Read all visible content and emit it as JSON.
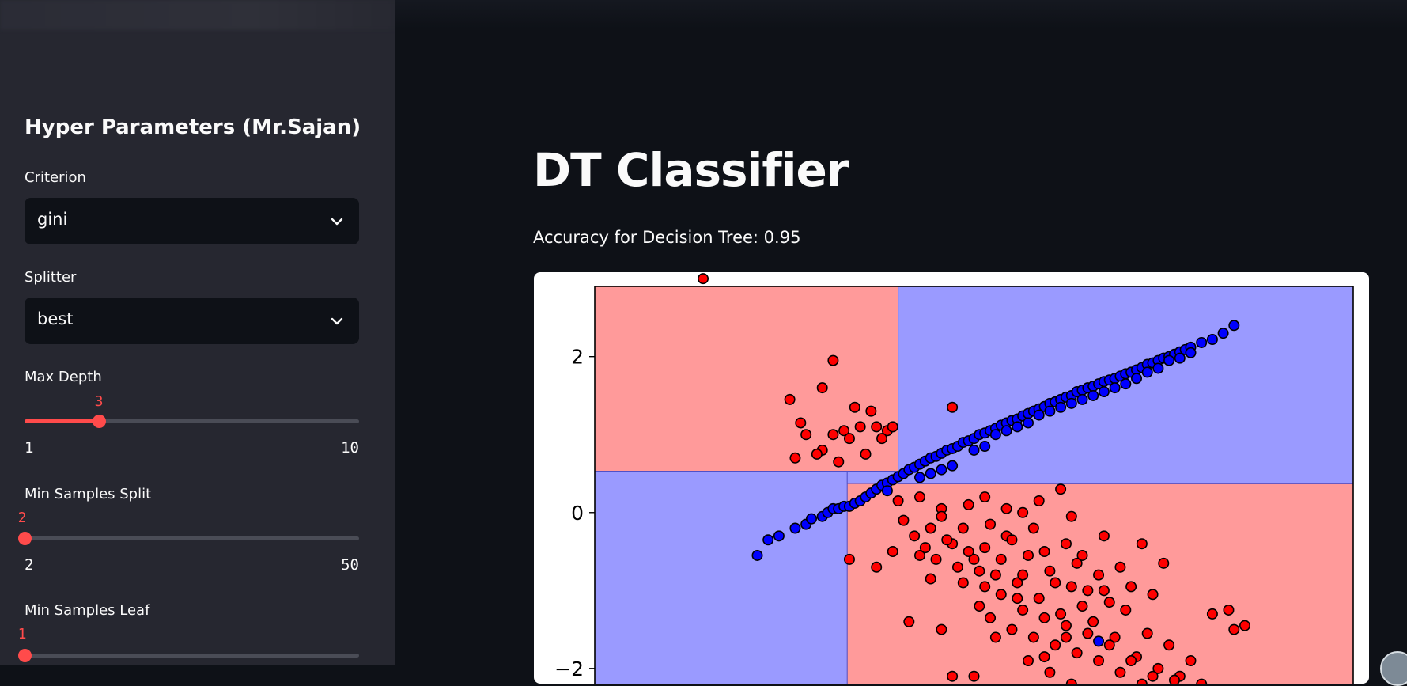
{
  "sidebar": {
    "title": "Hyper Parameters (Mr.Sajan)",
    "criterion": {
      "label": "Criterion",
      "value": "gini"
    },
    "splitter": {
      "label": "Splitter",
      "value": "best"
    },
    "max_depth": {
      "label": "Max Depth",
      "value": 3,
      "value_text": "3",
      "min": 1,
      "max": 10,
      "min_text": "1",
      "max_text": "10"
    },
    "min_samples_split": {
      "label": "Min Samples Split",
      "value": 2,
      "value_text": "2",
      "min": 2,
      "max": 50,
      "min_text": "2",
      "max_text": "50"
    },
    "min_samples_leaf": {
      "label": "Min Samples Leaf",
      "value": 1,
      "value_text": "1"
    }
  },
  "main": {
    "title": "DT Classifier",
    "accuracy_text": "Accuracy for Decision Tree: 0.95"
  },
  "colors": {
    "accent": "#ff4b4b",
    "region_red": "#ff9a9a",
    "region_blue": "#9a9aff",
    "point_red": "#ff0000",
    "point_blue": "#0000ff"
  },
  "chart_data": {
    "type": "scatter",
    "title": "",
    "xlabel": "",
    "ylabel": "",
    "xlim": [
      -3.4,
      3.6
    ],
    "ylim": [
      -2.6,
      2.9
    ],
    "y_ticks": [
      2,
      0,
      -2
    ],
    "y_tick_labels": [
      "2",
      "0",
      "−2"
    ],
    "decision_regions": [
      {
        "class": "red",
        "x": [
          -3.4,
          -0.6
        ],
        "y": [
          0.53,
          2.9
        ]
      },
      {
        "class": "blue",
        "x": [
          -0.6,
          3.6
        ],
        "y": [
          0.37,
          2.9
        ]
      },
      {
        "class": "blue",
        "x": [
          -3.4,
          -1.07
        ],
        "y": [
          -2.6,
          0.53
        ]
      },
      {
        "class": "red",
        "x": [
          -1.07,
          3.6
        ],
        "y": [
          -2.6,
          0.37
        ]
      },
      {
        "class": "blue",
        "x": [
          -1.07,
          -0.6
        ],
        "y": [
          0.37,
          0.53
        ]
      }
    ],
    "series": [
      {
        "name": "class_blue",
        "color": "#0000ff",
        "points": [
          [
            -1.9,
            -0.55
          ],
          [
            -1.8,
            -0.35
          ],
          [
            -1.7,
            -0.3
          ],
          [
            -1.55,
            -0.2
          ],
          [
            -1.45,
            -0.15
          ],
          [
            -1.4,
            -0.08
          ],
          [
            -1.3,
            -0.05
          ],
          [
            -1.25,
            0.0
          ],
          [
            -1.2,
            0.05
          ],
          [
            -1.15,
            0.05
          ],
          [
            -1.1,
            0.08
          ],
          [
            -1.05,
            0.08
          ],
          [
            -1.0,
            0.12
          ],
          [
            -0.95,
            0.15
          ],
          [
            -0.9,
            0.2
          ],
          [
            -0.85,
            0.25
          ],
          [
            -0.8,
            0.3
          ],
          [
            -0.75,
            0.35
          ],
          [
            -0.7,
            0.38
          ],
          [
            -0.65,
            0.42
          ],
          [
            -0.6,
            0.46
          ],
          [
            -0.55,
            0.5
          ],
          [
            -0.5,
            0.55
          ],
          [
            -0.45,
            0.58
          ],
          [
            -0.4,
            0.62
          ],
          [
            -0.35,
            0.66
          ],
          [
            -0.3,
            0.7
          ],
          [
            -0.25,
            0.72
          ],
          [
            -0.2,
            0.76
          ],
          [
            -0.15,
            0.8
          ],
          [
            -0.1,
            0.82
          ],
          [
            -0.05,
            0.85
          ],
          [
            0.0,
            0.9
          ],
          [
            0.05,
            0.92
          ],
          [
            0.1,
            0.95
          ],
          [
            0.15,
            1.0
          ],
          [
            0.2,
            1.02
          ],
          [
            0.25,
            1.05
          ],
          [
            0.3,
            1.08
          ],
          [
            0.35,
            1.12
          ],
          [
            0.4,
            1.15
          ],
          [
            0.45,
            1.18
          ],
          [
            0.5,
            1.2
          ],
          [
            0.55,
            1.24
          ],
          [
            0.6,
            1.27
          ],
          [
            0.65,
            1.3
          ],
          [
            0.7,
            1.33
          ],
          [
            0.75,
            1.36
          ],
          [
            0.8,
            1.4
          ],
          [
            0.85,
            1.42
          ],
          [
            0.9,
            1.45
          ],
          [
            0.95,
            1.48
          ],
          [
            1.0,
            1.5
          ],
          [
            1.05,
            1.55
          ],
          [
            1.1,
            1.57
          ],
          [
            1.15,
            1.6
          ],
          [
            1.2,
            1.62
          ],
          [
            1.25,
            1.65
          ],
          [
            1.3,
            1.68
          ],
          [
            1.35,
            1.7
          ],
          [
            1.4,
            1.72
          ],
          [
            1.45,
            1.75
          ],
          [
            1.5,
            1.78
          ],
          [
            1.55,
            1.8
          ],
          [
            1.6,
            1.83
          ],
          [
            1.65,
            1.86
          ],
          [
            1.7,
            1.9
          ],
          [
            1.75,
            1.92
          ],
          [
            1.8,
            1.95
          ],
          [
            1.85,
            1.98
          ],
          [
            1.9,
            2.0
          ],
          [
            1.95,
            2.03
          ],
          [
            2.0,
            2.06
          ],
          [
            2.05,
            2.09
          ],
          [
            2.1,
            2.12
          ],
          [
            2.2,
            2.18
          ],
          [
            2.3,
            2.22
          ],
          [
            2.4,
            2.3
          ],
          [
            2.5,
            2.4
          ],
          [
            -0.2,
            0.55
          ],
          [
            0.1,
            0.8
          ],
          [
            0.3,
            1.0
          ],
          [
            0.5,
            1.1
          ],
          [
            0.7,
            1.25
          ],
          [
            0.9,
            1.35
          ],
          [
            1.1,
            1.45
          ],
          [
            1.3,
            1.55
          ],
          [
            1.5,
            1.65
          ],
          [
            1.7,
            1.8
          ],
          [
            1.9,
            1.95
          ],
          [
            2.1,
            2.05
          ],
          [
            -0.7,
            0.28
          ],
          [
            -0.4,
            0.45
          ],
          [
            -0.1,
            0.6
          ],
          [
            0.2,
            0.85
          ],
          [
            0.6,
            1.15
          ],
          [
            1.0,
            1.4
          ],
          [
            1.4,
            1.6
          ],
          [
            1.8,
            1.85
          ],
          [
            -0.3,
            0.5
          ],
          [
            0.4,
            1.05
          ],
          [
            0.8,
            1.3
          ],
          [
            1.2,
            1.5
          ],
          [
            1.6,
            1.72
          ],
          [
            2.0,
            1.98
          ],
          [
            1.25,
            -1.65
          ]
        ]
      },
      {
        "name": "class_red",
        "color": "#ff0000",
        "points": [
          [
            -2.4,
            3.0
          ],
          [
            -1.2,
            1.95
          ],
          [
            -1.3,
            1.6
          ],
          [
            -1.6,
            1.45
          ],
          [
            -1.55,
            0.7
          ],
          [
            -1.2,
            1.0
          ],
          [
            -1.3,
            0.8
          ],
          [
            -1.1,
            1.05
          ],
          [
            -1.05,
            0.95
          ],
          [
            -0.95,
            1.1
          ],
          [
            -0.9,
            0.75
          ],
          [
            -0.8,
            1.1
          ],
          [
            -0.7,
            1.05
          ],
          [
            -0.65,
            1.1
          ],
          [
            -1.0,
            1.35
          ],
          [
            -1.15,
            0.65
          ],
          [
            -1.45,
            1.0
          ],
          [
            -1.35,
            0.75
          ],
          [
            -1.5,
            1.15
          ],
          [
            -0.1,
            1.35
          ],
          [
            -0.75,
            0.95
          ],
          [
            -0.85,
            1.3
          ],
          [
            -1.05,
            -0.6
          ],
          [
            -0.8,
            -0.7
          ],
          [
            -0.65,
            -0.5
          ],
          [
            -0.4,
            -0.55
          ],
          [
            -0.3,
            -0.2
          ],
          [
            -0.2,
            0.05
          ],
          [
            -0.1,
            -0.4
          ],
          [
            0.0,
            -0.2
          ],
          [
            0.1,
            -0.6
          ],
          [
            0.2,
            -0.45
          ],
          [
            0.3,
            -0.8
          ],
          [
            0.4,
            -0.3
          ],
          [
            0.5,
            -0.9
          ],
          [
            0.6,
            -0.55
          ],
          [
            0.7,
            -1.1
          ],
          [
            0.8,
            -0.75
          ],
          [
            0.9,
            -1.3
          ],
          [
            1.0,
            -0.95
          ],
          [
            1.1,
            -1.2
          ],
          [
            1.2,
            -1.4
          ],
          [
            1.3,
            -1.0
          ],
          [
            1.4,
            -1.6
          ],
          [
            1.5,
            -1.25
          ],
          [
            1.6,
            -1.85
          ],
          [
            1.7,
            -1.55
          ],
          [
            1.8,
            -2.0
          ],
          [
            1.9,
            -1.7
          ],
          [
            2.0,
            -2.1
          ],
          [
            2.1,
            -1.9
          ],
          [
            2.2,
            -2.2
          ],
          [
            2.3,
            -1.3
          ],
          [
            2.4,
            -2.3
          ],
          [
            2.5,
            -1.5
          ],
          [
            -0.5,
            -1.4
          ],
          [
            -0.2,
            -1.5
          ],
          [
            0.0,
            -0.9
          ],
          [
            0.15,
            -1.2
          ],
          [
            0.25,
            -1.35
          ],
          [
            0.35,
            -1.05
          ],
          [
            0.45,
            -1.5
          ],
          [
            0.55,
            -1.25
          ],
          [
            0.65,
            -1.6
          ],
          [
            0.75,
            -1.35
          ],
          [
            0.85,
            -1.7
          ],
          [
            0.95,
            -1.45
          ],
          [
            1.05,
            -1.8
          ],
          [
            1.15,
            -1.55
          ],
          [
            1.25,
            -1.9
          ],
          [
            1.35,
            -1.7
          ],
          [
            1.45,
            -2.05
          ],
          [
            1.55,
            -1.9
          ],
          [
            1.65,
            -2.2
          ],
          [
            1.75,
            -2.1
          ],
          [
            1.85,
            -2.3
          ],
          [
            1.95,
            -2.15
          ],
          [
            2.05,
            -2.45
          ],
          [
            2.2,
            -2.35
          ],
          [
            2.45,
            -1.25
          ],
          [
            2.6,
            -1.45
          ],
          [
            2.55,
            -2.3
          ],
          [
            -0.55,
            -0.1
          ],
          [
            -0.45,
            -0.3
          ],
          [
            -0.35,
            -0.45
          ],
          [
            -0.25,
            -0.6
          ],
          [
            -0.15,
            -0.35
          ],
          [
            -0.05,
            -0.7
          ],
          [
            0.05,
            -0.5
          ],
          [
            0.15,
            -0.75
          ],
          [
            0.25,
            -0.15
          ],
          [
            0.35,
            -0.6
          ],
          [
            0.45,
            -0.35
          ],
          [
            0.55,
            -0.8
          ],
          [
            0.65,
            -0.2
          ],
          [
            0.75,
            -0.5
          ],
          [
            0.85,
            -0.9
          ],
          [
            0.95,
            -0.4
          ],
          [
            1.05,
            -0.65
          ],
          [
            1.15,
            -1.0
          ],
          [
            1.25,
            -0.8
          ],
          [
            1.35,
            -1.15
          ],
          [
            1.45,
            -0.7
          ],
          [
            1.55,
            -0.95
          ],
          [
            1.65,
            -0.4
          ],
          [
            1.75,
            -1.05
          ],
          [
            1.85,
            -0.65
          ],
          [
            -0.6,
            0.15
          ],
          [
            -0.4,
            0.2
          ],
          [
            -0.2,
            -0.05
          ],
          [
            0.05,
            0.1
          ],
          [
            0.2,
            0.2
          ],
          [
            0.4,
            0.05
          ],
          [
            0.55,
            0.0
          ],
          [
            0.7,
            0.15
          ],
          [
            0.9,
            0.3
          ],
          [
            1.0,
            -0.05
          ],
          [
            0.3,
            -1.6
          ],
          [
            0.6,
            -1.9
          ],
          [
            0.8,
            -2.05
          ],
          [
            1.0,
            -2.2
          ],
          [
            1.2,
            -2.35
          ],
          [
            1.4,
            -2.5
          ],
          [
            0.1,
            -2.1
          ],
          [
            -0.1,
            -2.1
          ],
          [
            1.6,
            -2.45
          ],
          [
            0.95,
            -1.6
          ],
          [
            0.5,
            -1.1
          ],
          [
            0.2,
            -0.95
          ],
          [
            -0.3,
            -0.85
          ],
          [
            1.1,
            -0.55
          ],
          [
            1.3,
            -0.3
          ],
          [
            0.75,
            -1.85
          ]
        ]
      }
    ]
  }
}
